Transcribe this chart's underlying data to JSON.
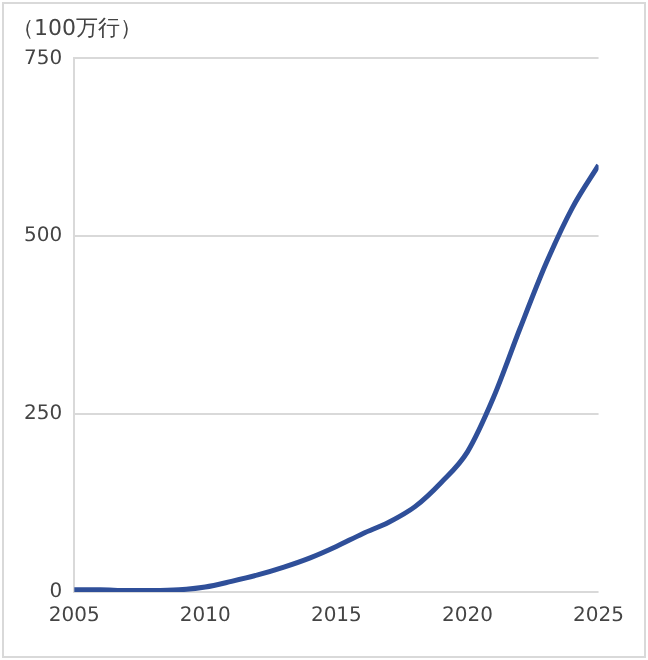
{
  "chart_data": {
    "type": "line",
    "ylabel": "（100万行）",
    "x": [
      2005,
      2006,
      2007,
      2008,
      2009,
      2010,
      2011,
      2012,
      2013,
      2014,
      2015,
      2016,
      2017,
      2018,
      2019,
      2020,
      2021,
      2022,
      2023,
      2024,
      2025
    ],
    "series": [
      {
        "color": "#2f4f99",
        "values": [
          3,
          3,
          2,
          2,
          3,
          7,
          15,
          24,
          35,
          48,
          64,
          82,
          98,
          120,
          154,
          197,
          274,
          370,
          462,
          540,
          600
        ]
      }
    ],
    "xlim": [
      2005,
      2025
    ],
    "xticks": [
      2005,
      2010,
      2015,
      2020,
      2025
    ],
    "ylim": [
      0,
      750
    ],
    "yticks": [
      0,
      250,
      500,
      750
    ],
    "grid": "y",
    "legend": false,
    "marker": "none",
    "line_style": "solid"
  }
}
